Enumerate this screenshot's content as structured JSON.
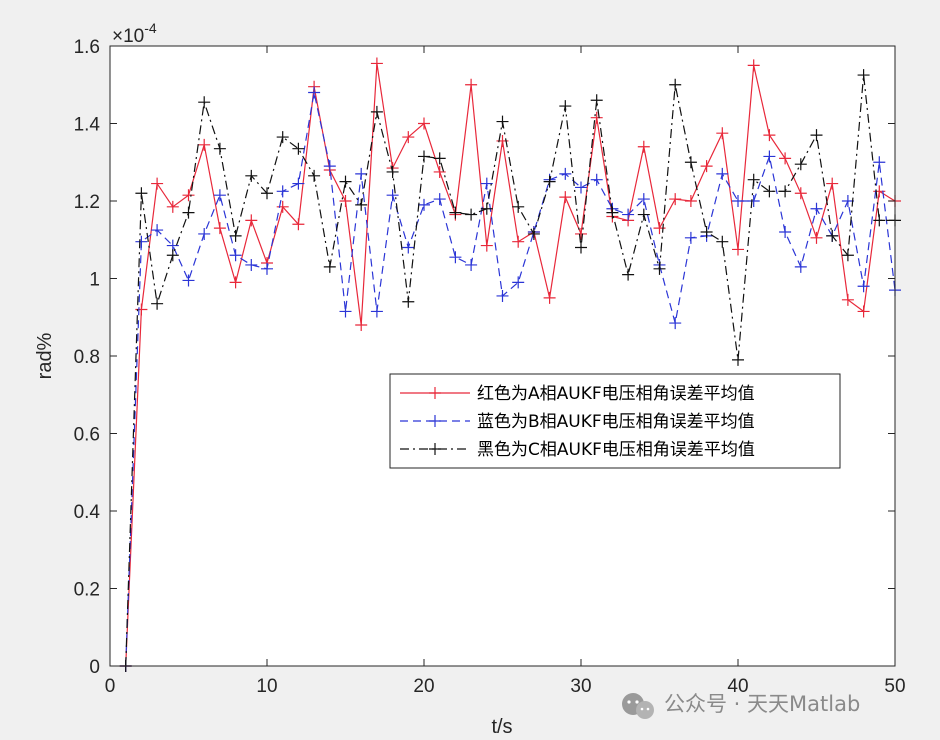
{
  "chart_data": {
    "type": "line",
    "xlabel": "t/s",
    "ylabel": "rad%",
    "xlim": [
      0,
      50
    ],
    "ylim": [
      0,
      1.6
    ],
    "x_ticks": [
      "0",
      "10",
      "20",
      "30",
      "40",
      "50"
    ],
    "y_ticks": [
      "0",
      "0.2",
      "0.4",
      "0.6",
      "0.8",
      "1",
      "1.2",
      "1.4",
      "1.6"
    ],
    "y_exponent_base": "×10",
    "y_exponent_power": "-4",
    "grid": false,
    "legend_placement": "center-right",
    "x": [
      1,
      2,
      3,
      4,
      5,
      6,
      7,
      8,
      9,
      10,
      11,
      12,
      13,
      14,
      15,
      16,
      17,
      18,
      19,
      20,
      21,
      22,
      23,
      24,
      25,
      26,
      27,
      28,
      29,
      30,
      31,
      32,
      33,
      34,
      35,
      36,
      37,
      38,
      39,
      40,
      41,
      42,
      43,
      44,
      45,
      46,
      47,
      48,
      49,
      50
    ],
    "series": [
      {
        "name": "红色为A相AUKF电压相角误差平均值",
        "color": "#e8283a",
        "dash": "solid",
        "values": [
          0,
          0.92,
          1.245,
          1.185,
          1.215,
          1.345,
          1.13,
          0.99,
          1.15,
          1.04,
          1.185,
          1.14,
          1.495,
          1.28,
          1.2,
          0.88,
          1.555,
          1.285,
          1.365,
          1.4,
          1.275,
          1.165,
          1.5,
          1.085,
          1.355,
          1.095,
          1.12,
          0.95,
          1.21,
          1.115,
          1.415,
          1.16,
          1.15,
          1.34,
          1.13,
          1.205,
          1.2,
          1.29,
          1.375,
          1.075,
          1.55,
          1.37,
          1.31,
          1.22,
          1.105,
          1.245,
          0.945,
          0.915,
          1.225,
          1.2
        ]
      },
      {
        "name": "蓝色为B相AUKF电压相角误差平均值",
        "color": "#2b35d6",
        "dash": "dashed",
        "values": [
          0,
          1.095,
          1.125,
          1.085,
          0.995,
          1.115,
          1.215,
          1.06,
          1.035,
          1.025,
          1.225,
          1.245,
          1.48,
          1.29,
          0.915,
          1.27,
          0.915,
          1.215,
          1.08,
          1.19,
          1.205,
          1.055,
          1.035,
          1.245,
          0.955,
          0.99,
          1.12,
          1.255,
          1.27,
          1.235,
          1.255,
          1.18,
          1.165,
          1.205,
          1.035,
          0.885,
          1.105,
          1.11,
          1.27,
          1.2,
          1.2,
          1.315,
          1.12,
          1.03,
          1.18,
          1.11,
          1.2,
          0.98,
          1.3,
          0.97
        ]
      },
      {
        "name": "黑色为C相AUKF电压相角误差平均值",
        "color": "#111111",
        "dash": "dashdot",
        "values": [
          0,
          1.22,
          0.935,
          1.06,
          1.17,
          1.455,
          1.335,
          1.11,
          1.265,
          1.22,
          1.365,
          1.335,
          1.265,
          1.03,
          1.25,
          1.19,
          1.43,
          1.275,
          0.94,
          1.315,
          1.31,
          1.17,
          1.165,
          1.18,
          1.405,
          1.185,
          1.115,
          1.25,
          1.445,
          1.08,
          1.46,
          1.17,
          1.01,
          1.165,
          1.025,
          1.5,
          1.3,
          1.12,
          1.095,
          0.79,
          1.255,
          1.225,
          1.225,
          1.295,
          1.37,
          1.11,
          1.06,
          1.525,
          1.15,
          1.15
        ]
      }
    ]
  },
  "watermark": {
    "text": "公众号 · 天天Matlab",
    "icon": "wechat-icon"
  }
}
